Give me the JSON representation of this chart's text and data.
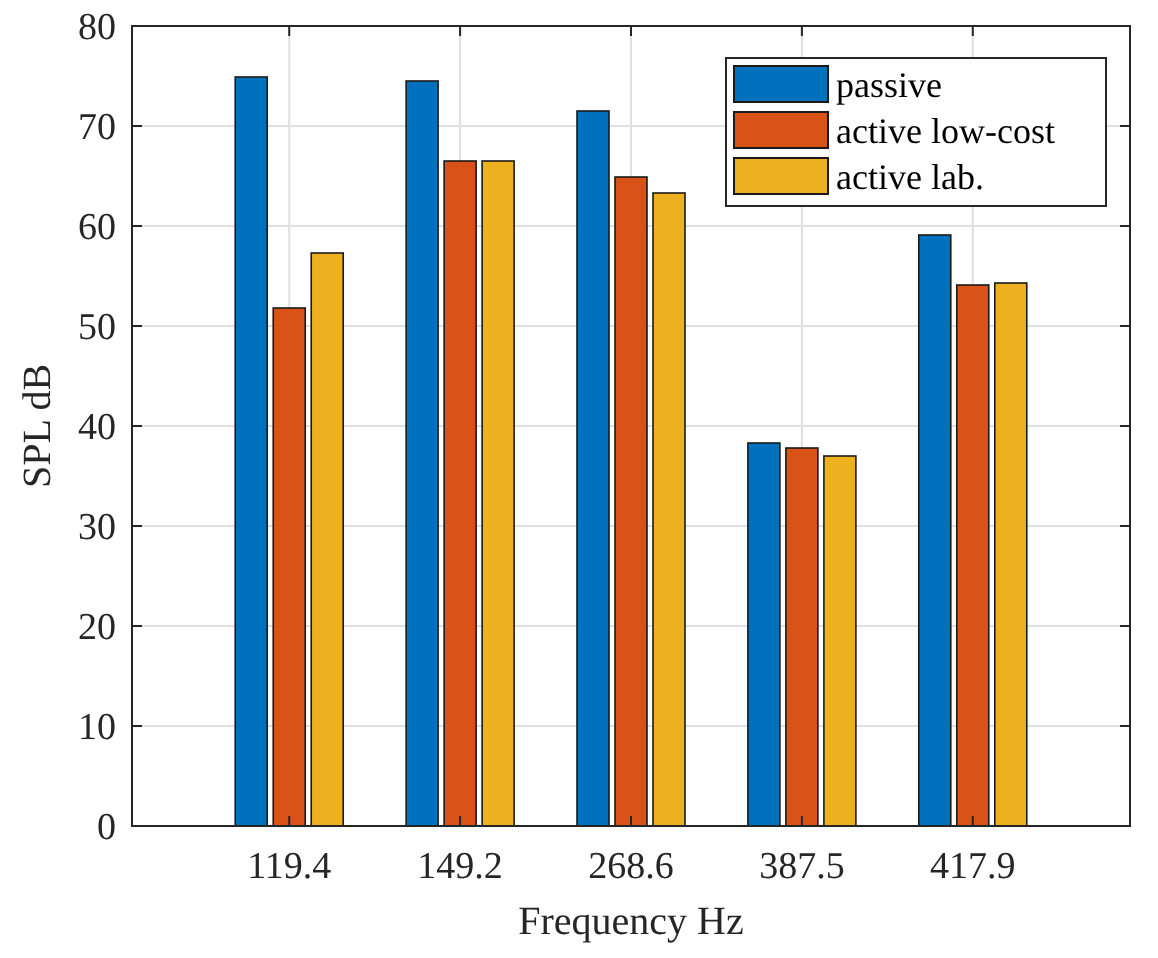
{
  "chart_data": {
    "type": "bar",
    "xlabel": "Frequency Hz",
    "ylabel": "SPL dB",
    "categories": [
      "119.4",
      "149.2",
      "268.6",
      "387.5",
      "417.9"
    ],
    "series": [
      {
        "name": "passive",
        "color": "#0072bd",
        "values": [
          74.9,
          74.5,
          71.5,
          38.3,
          59.1
        ]
      },
      {
        "name": "active low-cost",
        "color": "#d95319",
        "values": [
          51.8,
          66.5,
          64.9,
          37.8,
          54.1
        ]
      },
      {
        "name": "active lab.",
        "color": "#edb120",
        "values": [
          57.3,
          66.5,
          63.3,
          37.0,
          54.3
        ]
      }
    ],
    "ylim": [
      0,
      80
    ],
    "yticks": [
      0,
      10,
      20,
      30,
      40,
      50,
      60,
      70,
      80
    ],
    "grid": true,
    "legend": "top right"
  }
}
